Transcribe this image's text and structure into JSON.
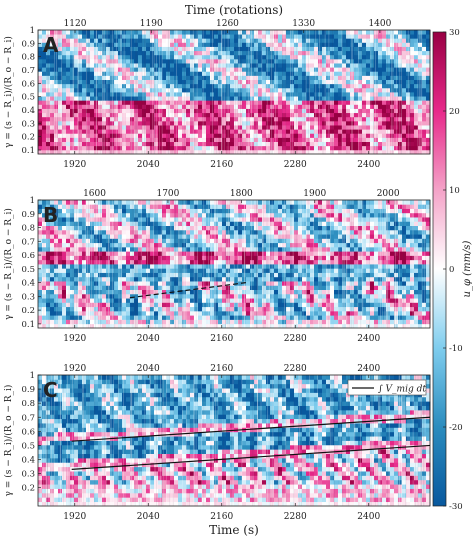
{
  "chart_data": [
    {
      "type": "heatmap",
      "panel_label": "A",
      "top_axis_label": "Time (rotations)",
      "top_ticks": [
        1120,
        1190,
        1260,
        1330,
        1400
      ],
      "top_range": [
        1086,
        1446
      ],
      "bottom_ticks": [
        1920,
        2040,
        2160,
        2280,
        2400
      ],
      "x_range": [
        1860,
        2500
      ],
      "ylabel": "γ = (s − R_i)/(R_o − R_i)",
      "ylim": [
        0.07,
        1.0
      ],
      "yticks": [
        0.1,
        0.2,
        0.3,
        0.4,
        0.5,
        0.6,
        0.7,
        0.8,
        0.9,
        1
      ],
      "annotation_lines": []
    },
    {
      "type": "heatmap",
      "panel_label": "B",
      "top_axis_label": "",
      "top_ticks": [
        1600,
        1700,
        1800,
        1900,
        2000
      ],
      "top_range": [
        1523,
        2057
      ],
      "bottom_ticks": [
        1920,
        2040,
        2160,
        2280,
        2400
      ],
      "x_range": [
        1860,
        2500
      ],
      "ylabel": "γ = (s − R_i)/(R_o − R_i)",
      "ylim": [
        0.07,
        1.0
      ],
      "yticks": [
        0.1,
        0.2,
        0.3,
        0.4,
        0.5,
        0.6,
        0.7,
        0.8,
        0.9,
        1
      ],
      "annotation_lines": [
        {
          "style": "dashed",
          "x": [
            2010,
            2200
          ],
          "y": [
            0.29,
            0.4
          ]
        }
      ]
    },
    {
      "type": "heatmap",
      "panel_label": "C",
      "top_axis_label": "",
      "top_ticks": [
        1920,
        2040,
        2160,
        2280,
        2400
      ],
      "top_range": [
        1860,
        2500
      ],
      "bottom_ticks": [
        1920,
        2040,
        2160,
        2280,
        2400
      ],
      "x_range": [
        1860,
        2500
      ],
      "xlabel": "Time (s)",
      "ylabel": "γ = (s − R_i)/(R_o − R_i)",
      "ylim": [
        0.07,
        1.0
      ],
      "yticks": [
        0.2,
        0.3,
        0.4,
        0.5,
        0.6,
        0.7,
        0.8,
        0.9,
        1
      ],
      "legend": {
        "label": "∫ V_mig dt",
        "placement": "top-right"
      },
      "annotation_lines": [
        {
          "style": "solid",
          "x": [
            1915,
            2500
          ],
          "y": [
            0.53,
            0.7
          ]
        },
        {
          "style": "solid",
          "x": [
            1915,
            2500
          ],
          "y": [
            0.33,
            0.5
          ]
        }
      ]
    }
  ],
  "colorbar": {
    "label": "u_φ (mm/s)",
    "range": [
      -30,
      30
    ],
    "ticks": [
      30,
      20,
      10,
      0,
      -10,
      -20,
      -30
    ],
    "colors": [
      "#08589e",
      "#2b8cbe",
      "#7fcdee",
      "#ffffff",
      "#f4a3c8",
      "#e7298a",
      "#980043"
    ]
  }
}
